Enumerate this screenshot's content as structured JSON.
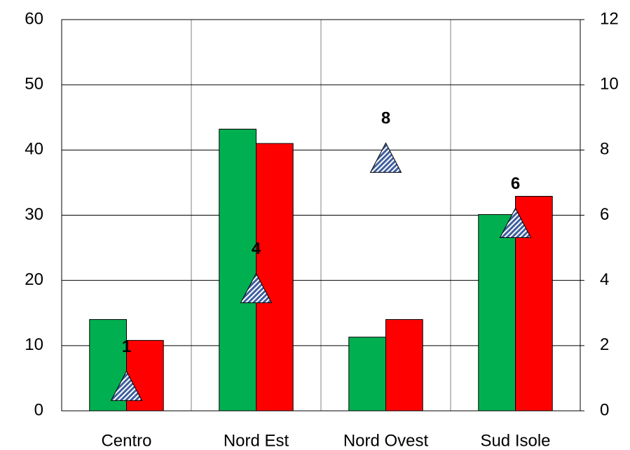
{
  "chart_data": {
    "type": "bar",
    "categories": [
      "Centro",
      "Nord Est",
      "Nord Ovest",
      "Sud Isole"
    ],
    "series": [
      {
        "color": "#00b050",
        "values": [
          14,
          43.2,
          11.3,
          30.1
        ]
      },
      {
        "color": "#ff0000",
        "values": [
          10.8,
          41,
          14,
          32.9
        ]
      },
      {
        "color": "#3f5f9f",
        "axis": "y2",
        "marker": "triangle",
        "data_labels": true,
        "values": [
          1,
          4,
          8,
          6
        ]
      }
    ],
    "ylim": [
      0,
      60
    ],
    "yticks": [
      0,
      10,
      20,
      30,
      40,
      50,
      60
    ],
    "y2lim": [
      0,
      12
    ],
    "y2ticks": [
      0,
      2,
      4,
      6,
      8,
      10,
      12
    ],
    "grid": true
  }
}
